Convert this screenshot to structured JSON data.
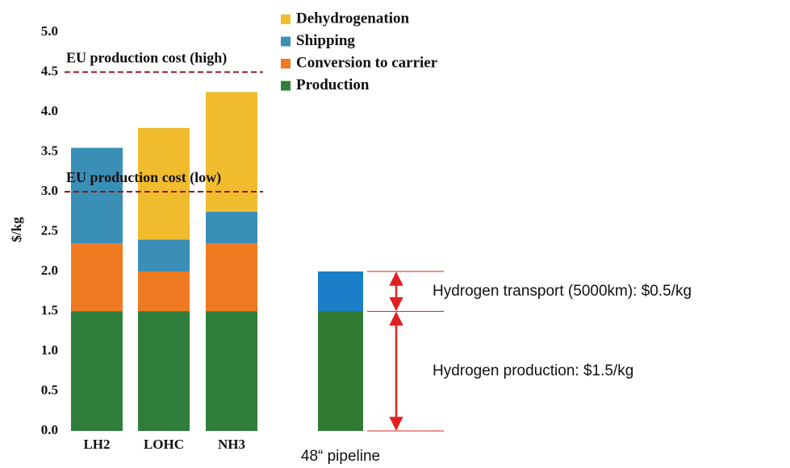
{
  "chart_data": [
    {
      "type": "bar",
      "stacked": true,
      "ylabel": "$/kg",
      "categories": [
        "LH2",
        "LOHC",
        "NH3"
      ],
      "series": [
        {
          "name": "Production",
          "color": "#2f7d3a",
          "values": [
            1.5,
            1.5,
            1.5
          ]
        },
        {
          "name": "Conversion to carrier",
          "color": "#f07a22",
          "values": [
            0.85,
            0.5,
            0.85
          ]
        },
        {
          "name": "Shipping",
          "color": "#3a8fb7",
          "values": [
            1.2,
            0.4,
            0.4
          ]
        },
        {
          "name": "Dehydrogenation",
          "color": "#f0bc2e",
          "values": [
            0,
            1.4,
            1.5
          ]
        }
      ],
      "ylim": [
        0,
        5.0
      ],
      "yticks": [
        {
          "value": 0,
          "label": "0.0"
        },
        0.5,
        {
          "value": 1,
          "label": "1.0"
        },
        1.5,
        {
          "value": 2,
          "label": "2.0"
        },
        2.5,
        {
          "value": 3,
          "label": "3.0"
        },
        3.5,
        {
          "value": 4,
          "label": "4.0"
        },
        4.5,
        {
          "value": 5,
          "label": "5.0"
        }
      ],
      "reference_lines": [
        {
          "value": 4.5,
          "label": "EU production cost (high)",
          "color": "#8b1a1a"
        },
        {
          "value": 3.0,
          "label": "EU production cost (low)",
          "color": "#8b1a1a"
        }
      ],
      "legend": "top-right"
    },
    {
      "type": "bar",
      "stacked": true,
      "categories": [
        "48“ pipeline"
      ],
      "series": [
        {
          "color": "#317a33",
          "values": [
            1.5
          ]
        },
        {
          "color": "#1a7fc8",
          "values": [
            0.5
          ]
        }
      ],
      "annotations": [
        "Hydrogen production: $1.5/kg",
        "Hydrogen transport (5000km): $0.5/kg"
      ],
      "arrow_color": "#e02020"
    }
  ]
}
